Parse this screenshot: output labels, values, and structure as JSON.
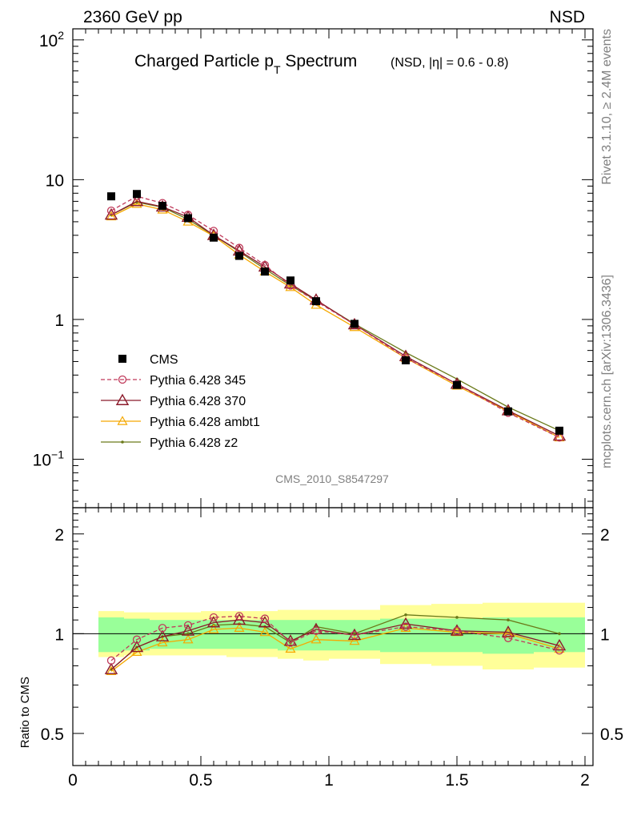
{
  "header": {
    "left": "2360 GeV pp",
    "right": "NSD"
  },
  "title": {
    "main_prefix": "Charged Particle p",
    "main_sub": "T",
    "main_suffix": " Spectrum",
    "qualifier": "(NSD, |η| = 0.6 - 0.8)"
  },
  "side_labels": {
    "rivet": "Rivet 3.1.10, ≥ 2.4M events",
    "mcplots": "mcplots.cern.ch [arXiv:1306.3436]"
  },
  "analysis_id": "CMS_2010_S8547297",
  "colors": {
    "cms": "#000000",
    "p345": "#c0395a",
    "p370": "#8b1a2a",
    "ambt1": "#f5a800",
    "z2": "#6b7a1a",
    "band_inner": "#99ff99",
    "band_outer": "#ffff99"
  },
  "chart_data": {
    "type": "line",
    "main": {
      "ylog": true,
      "ylim": [
        0.045,
        120
      ],
      "xlim": [
        0,
        2
      ],
      "yticks": [
        {
          "v": 100,
          "base": "10",
          "exp": "2"
        },
        {
          "v": 10,
          "base": "10",
          "exp": ""
        },
        {
          "v": 1,
          "base": "1",
          "exp": ""
        },
        {
          "v": 0.1,
          "base": "10",
          "exp": "−1"
        }
      ]
    },
    "ratio": {
      "ylabel": "Ratio to CMS",
      "ylog": true,
      "ylim": [
        0.4,
        2.4
      ],
      "yticks": [
        {
          "v": 2,
          "label": "2"
        },
        {
          "v": 1,
          "label": "1"
        },
        {
          "v": 0.5,
          "label": "0.5"
        }
      ],
      "xticks": [
        {
          "v": 0,
          "label": "0"
        },
        {
          "v": 0.5,
          "label": "0.5"
        },
        {
          "v": 1,
          "label": "1"
        },
        {
          "v": 1.5,
          "label": "1.5"
        },
        {
          "v": 2,
          "label": "2"
        }
      ]
    },
    "bins": [
      [
        0.1,
        0.2
      ],
      [
        0.2,
        0.3
      ],
      [
        0.3,
        0.4
      ],
      [
        0.4,
        0.5
      ],
      [
        0.5,
        0.6
      ],
      [
        0.6,
        0.7
      ],
      [
        0.7,
        0.8
      ],
      [
        0.8,
        0.9
      ],
      [
        0.9,
        1.0
      ],
      [
        1.0,
        1.2
      ],
      [
        1.2,
        1.4
      ],
      [
        1.4,
        1.6
      ],
      [
        1.6,
        1.8
      ],
      [
        1.8,
        2.0
      ]
    ],
    "x": [
      0.15,
      0.25,
      0.35,
      0.45,
      0.55,
      0.65,
      0.75,
      0.85,
      0.95,
      1.1,
      1.3,
      1.5,
      1.7,
      1.9
    ],
    "cms": {
      "name": "CMS",
      "values": [
        7.6,
        7.9,
        6.5,
        5.3,
        3.85,
        2.85,
        2.2,
        1.9,
        1.35,
        0.93,
        0.51,
        0.34,
        0.22,
        0.16
      ]
    },
    "series": [
      {
        "name": "Pythia 6.428 345",
        "key": "p345",
        "marker": "circle",
        "dashed": true,
        "values": [
          6.0,
          7.6,
          6.8,
          5.6,
          4.3,
          3.25,
          2.45,
          1.75,
          1.35,
          0.92,
          0.53,
          0.345,
          0.215,
          0.143
        ]
      },
      {
        "name": "Pythia 6.428 370",
        "key": "p370",
        "marker": "triangle-big",
        "dashed": false,
        "values": [
          5.6,
          7.0,
          6.4,
          5.4,
          4.0,
          3.1,
          2.38,
          1.8,
          1.38,
          0.92,
          0.545,
          0.345,
          0.223,
          0.147
        ]
      },
      {
        "name": "Pythia 6.428 ambt1",
        "key": "ambt1",
        "marker": "triangle-small",
        "dashed": false,
        "values": [
          5.45,
          6.7,
          6.1,
          5.0,
          3.95,
          2.9,
          2.2,
          1.7,
          1.27,
          0.88,
          0.53,
          0.335,
          0.22,
          0.143
        ]
      },
      {
        "name": "Pythia 6.428 z2",
        "key": "z2",
        "marker": "dot",
        "dashed": false,
        "values": [
          5.6,
          6.9,
          6.35,
          5.2,
          4.0,
          3.05,
          2.3,
          1.75,
          1.37,
          0.93,
          0.58,
          0.375,
          0.236,
          0.16
        ]
      }
    ],
    "ratios": {
      "p345": [
        0.83,
        0.96,
        1.04,
        1.06,
        1.12,
        1.13,
        1.11,
        0.94,
        1.02,
        0.99,
        1.05,
        1.02,
        0.97,
        0.89
      ],
      "p370": [
        0.78,
        0.91,
        0.98,
        1.02,
        1.08,
        1.1,
        1.08,
        0.95,
        1.03,
        0.99,
        1.07,
        1.02,
        1.01,
        0.92
      ],
      "ambt1": [
        0.77,
        0.88,
        0.94,
        0.96,
        1.03,
        1.04,
        1.01,
        0.9,
        0.96,
        0.95,
        1.04,
        1.01,
        1.0,
        0.9
      ],
      "z2": [
        0.78,
        0.91,
        0.98,
        1.0,
        1.06,
        1.07,
        1.05,
        0.94,
        1.05,
        1.0,
        1.14,
        1.12,
        1.1,
        1.0
      ]
    },
    "band_inner": [
      [
        0.88,
        1.12
      ],
      [
        0.89,
        1.11
      ],
      [
        0.9,
        1.1
      ],
      [
        0.9,
        1.1
      ],
      [
        0.9,
        1.1
      ],
      [
        0.9,
        1.1
      ],
      [
        0.9,
        1.1
      ],
      [
        0.89,
        1.1
      ],
      [
        0.89,
        1.1
      ],
      [
        0.89,
        1.1
      ],
      [
        0.88,
        1.11
      ],
      [
        0.88,
        1.11
      ],
      [
        0.87,
        1.12
      ],
      [
        0.88,
        1.12
      ]
    ],
    "band_outer": [
      [
        0.85,
        1.17
      ],
      [
        0.86,
        1.16
      ],
      [
        0.86,
        1.16
      ],
      [
        0.86,
        1.16
      ],
      [
        0.86,
        1.17
      ],
      [
        0.85,
        1.17
      ],
      [
        0.85,
        1.17
      ],
      [
        0.84,
        1.18
      ],
      [
        0.83,
        1.18
      ],
      [
        0.84,
        1.18
      ],
      [
        0.81,
        1.22
      ],
      [
        0.8,
        1.23
      ],
      [
        0.78,
        1.24
      ],
      [
        0.79,
        1.24
      ]
    ]
  }
}
